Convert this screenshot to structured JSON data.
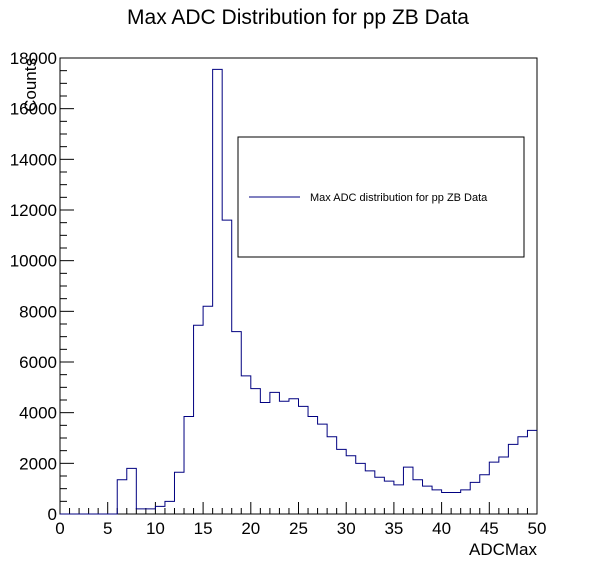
{
  "chart_data": {
    "type": "line",
    "style": "histogram-step",
    "title": "Max ADC Distribution for pp ZB Data",
    "xlabel": "ADCMax",
    "ylabel": "Counts",
    "xlim": [
      0,
      50
    ],
    "ylim": [
      0,
      18000
    ],
    "xticks": [
      0,
      5,
      10,
      15,
      20,
      25,
      30,
      35,
      40,
      45,
      50
    ],
    "yticks": [
      0,
      2000,
      4000,
      6000,
      8000,
      10000,
      12000,
      14000,
      16000,
      18000
    ],
    "bin_width": 1,
    "bin_edges_start": 0,
    "grid": false,
    "legend_placement": "upper-right",
    "series": [
      {
        "name": "Max ADC distribution for pp ZB Data",
        "color": "#000080",
        "values": [
          0,
          0,
          0,
          0,
          0,
          0,
          1350,
          1800,
          200,
          200,
          300,
          500,
          1650,
          3850,
          7450,
          8200,
          17550,
          11600,
          7200,
          5450,
          4950,
          4400,
          4800,
          4450,
          4550,
          4250,
          3850,
          3550,
          3050,
          2550,
          2300,
          2000,
          1700,
          1450,
          1300,
          1150,
          1850,
          1350,
          1100,
          950,
          850,
          850,
          950,
          1250,
          1550,
          2050,
          2250,
          2750,
          3050,
          3300
        ]
      }
    ]
  }
}
